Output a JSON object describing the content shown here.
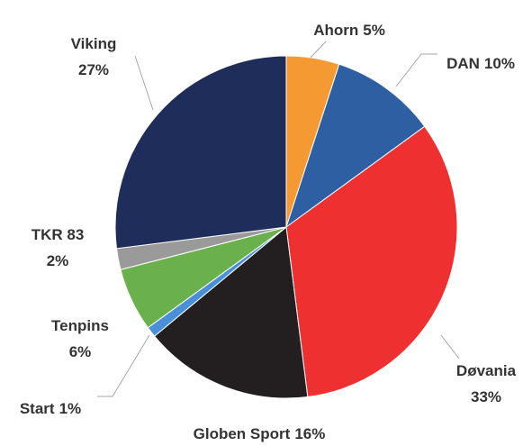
{
  "chart_data": {
    "type": "pie",
    "categories": [
      "Ahorn",
      "DAN",
      "Døvania",
      "Globen Sport",
      "Start",
      "Tenpins",
      "TKR 83",
      "Viking"
    ],
    "values": [
      5,
      10,
      33,
      16,
      1,
      6,
      2,
      27
    ],
    "value_labels": [
      "5%",
      "10%",
      "33%",
      "16%",
      "1%",
      "6%",
      "2%",
      "27%"
    ],
    "colors": [
      "#f59a32",
      "#2e5fa3",
      "#ee3030",
      "#231f20",
      "#4a90d9",
      "#6ab04c",
      "#9a9a9a",
      "#1f2d5a"
    ]
  }
}
